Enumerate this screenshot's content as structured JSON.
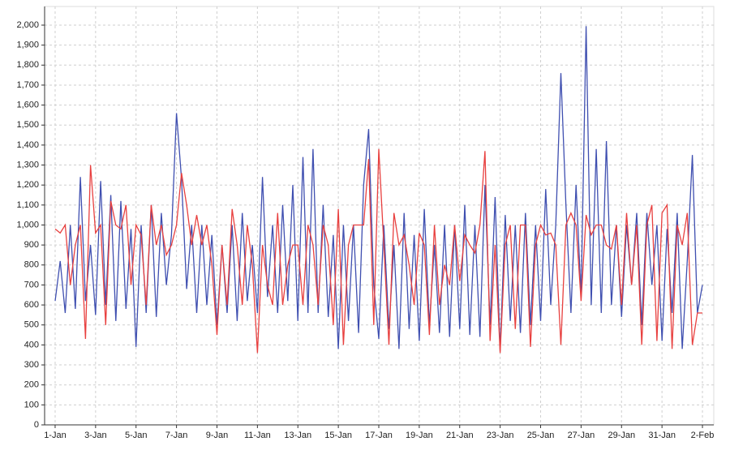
{
  "chart_data": {
    "type": "line",
    "x": [
      0,
      0.25,
      0.5,
      0.75,
      1,
      1.25,
      1.5,
      1.75,
      2,
      2.25,
      2.5,
      2.75,
      3,
      3.25,
      3.5,
      3.75,
      4,
      4.25,
      4.5,
      4.75,
      5,
      5.25,
      5.5,
      5.75,
      6,
      6.25,
      6.5,
      6.75,
      7,
      7.25,
      7.5,
      7.75,
      8,
      8.25,
      8.5,
      8.75,
      9,
      9.25,
      9.5,
      9.75,
      10,
      10.25,
      10.5,
      10.75,
      11,
      11.25,
      11.5,
      11.75,
      12,
      12.25,
      12.5,
      12.75,
      13,
      13.25,
      13.5,
      13.75,
      14,
      14.25,
      14.5,
      14.75,
      15,
      15.25,
      15.5,
      15.75,
      16,
      16.25,
      16.5,
      16.75,
      17,
      17.25,
      17.5,
      17.75,
      18,
      18.25,
      18.5,
      18.75,
      19,
      19.25,
      19.5,
      19.75,
      20,
      20.25,
      20.5,
      20.75,
      21,
      21.25,
      21.5,
      21.75,
      22,
      22.25,
      22.5,
      22.75,
      23,
      23.25,
      23.5,
      23.75,
      24,
      24.25,
      24.5,
      24.75,
      25,
      25.25,
      25.5,
      25.75,
      26,
      26.25,
      26.5,
      26.75,
      27,
      27.25,
      27.5,
      27.75,
      28,
      28.25,
      28.5,
      28.75,
      29,
      29.25,
      29.5,
      29.75,
      30,
      30.25,
      30.5,
      30.75,
      31,
      31.25,
      31.5,
      31.75,
      32
    ],
    "series": [
      {
        "color": "#3f4fb0",
        "values": [
          620,
          820,
          560,
          1000,
          580,
          1240,
          620,
          900,
          550,
          1220,
          600,
          1150,
          520,
          1120,
          580,
          980,
          390,
          1000,
          560,
          1100,
          540,
          1060,
          700,
          950,
          1560,
          1230,
          680,
          1000,
          560,
          1000,
          600,
          950,
          500,
          900,
          560,
          1000,
          520,
          1060,
          620,
          900,
          560,
          1240,
          640,
          1000,
          560,
          1100,
          620,
          1200,
          520,
          1340,
          560,
          1380,
          560,
          1100,
          540,
          950,
          380,
          1000,
          520,
          1000,
          460,
          1200,
          1480,
          700,
          430,
          1000,
          480,
          900,
          380,
          1060,
          480,
          950,
          420,
          1080,
          500,
          900,
          460,
          1000,
          440,
          1000,
          480,
          1100,
          450,
          1000,
          440,
          1200,
          500,
          1140,
          370,
          1050,
          520,
          1000,
          460,
          1060,
          500,
          1000,
          520,
          1180,
          600,
          1000,
          1760,
          1100,
          560,
          1200,
          640,
          1995,
          600,
          1380,
          560,
          1420,
          600,
          1000,
          540,
          1000,
          700,
          1060,
          500,
          1060,
          700,
          1000,
          420,
          980,
          560,
          1060,
          380,
          820,
          1350,
          560,
          700
        ]
      },
      {
        "color": "#e8403f",
        "values": [
          980,
          960,
          1000,
          700,
          900,
          1000,
          430,
          1300,
          960,
          1000,
          500,
          1120,
          1000,
          980,
          1100,
          700,
          1000,
          950,
          600,
          1100,
          900,
          1000,
          850,
          900,
          1000,
          1260,
          1100,
          900,
          1050,
          900,
          1000,
          800,
          450,
          900,
          600,
          1080,
          900,
          600,
          1000,
          800,
          360,
          900,
          700,
          600,
          1060,
          600,
          800,
          900,
          900,
          600,
          1000,
          900,
          600,
          1000,
          900,
          500,
          1080,
          400,
          900,
          1000,
          1000,
          1000,
          1330,
          500,
          1380,
          900,
          400,
          1060,
          900,
          950,
          800,
          600,
          960,
          900,
          450,
          1000,
          600,
          800,
          700,
          1000,
          720,
          950,
          900,
          860,
          1000,
          1370,
          420,
          900,
          360,
          900,
          1000,
          480,
          1000,
          1000,
          390,
          900,
          1000,
          950,
          960,
          900,
          400,
          1000,
          1060,
          1000,
          620,
          1050,
          950,
          1000,
          1000,
          900,
          880,
          1000,
          600,
          1060,
          700,
          1000,
          400,
          1000,
          1100,
          420,
          1060,
          1100,
          380,
          1000,
          900,
          1060,
          400,
          560,
          560
        ]
      }
    ],
    "xlim": [
      -0.52,
      32.56
    ],
    "xticks": [
      {
        "value": 0,
        "label": "1-Jan"
      },
      {
        "value": 2,
        "label": "3-Jan"
      },
      {
        "value": 4,
        "label": "5-Jan"
      },
      {
        "value": 6,
        "label": "7-Jan"
      },
      {
        "value": 8,
        "label": "9-Jan"
      },
      {
        "value": 10,
        "label": "11-Jan"
      },
      {
        "value": 12,
        "label": "13-Jan"
      },
      {
        "value": 14,
        "label": "15-Jan"
      },
      {
        "value": 16,
        "label": "17-Jan"
      },
      {
        "value": 18,
        "label": "19-Jan"
      },
      {
        "value": 20,
        "label": "21-Jan"
      },
      {
        "value": 22,
        "label": "23-Jan"
      },
      {
        "value": 24,
        "label": "25-Jan"
      },
      {
        "value": 26,
        "label": "27-Jan"
      },
      {
        "value": 28,
        "label": "29-Jan"
      },
      {
        "value": 30,
        "label": "31-Jan"
      },
      {
        "value": 32,
        "label": "2-Feb"
      }
    ],
    "ylim": [
      0,
      2000
    ],
    "yticks": [
      0,
      100,
      200,
      300,
      400,
      500,
      600,
      700,
      800,
      900,
      {
        "value": 1000,
        "label": "1,000"
      },
      {
        "value": 1100,
        "label": "1,100"
      },
      {
        "value": 1200,
        "label": "1,200"
      },
      {
        "value": 1300,
        "label": "1,300"
      },
      {
        "value": 1400,
        "label": "1,400"
      },
      {
        "value": 1500,
        "label": "1,500"
      },
      {
        "value": 1600,
        "label": "1,600"
      },
      {
        "value": 1700,
        "label": "1,700"
      },
      {
        "value": 1800,
        "label": "1,800"
      },
      {
        "value": 1900,
        "label": "1,900"
      },
      {
        "value": 2000,
        "label": "2,000"
      }
    ],
    "grid": true
  }
}
